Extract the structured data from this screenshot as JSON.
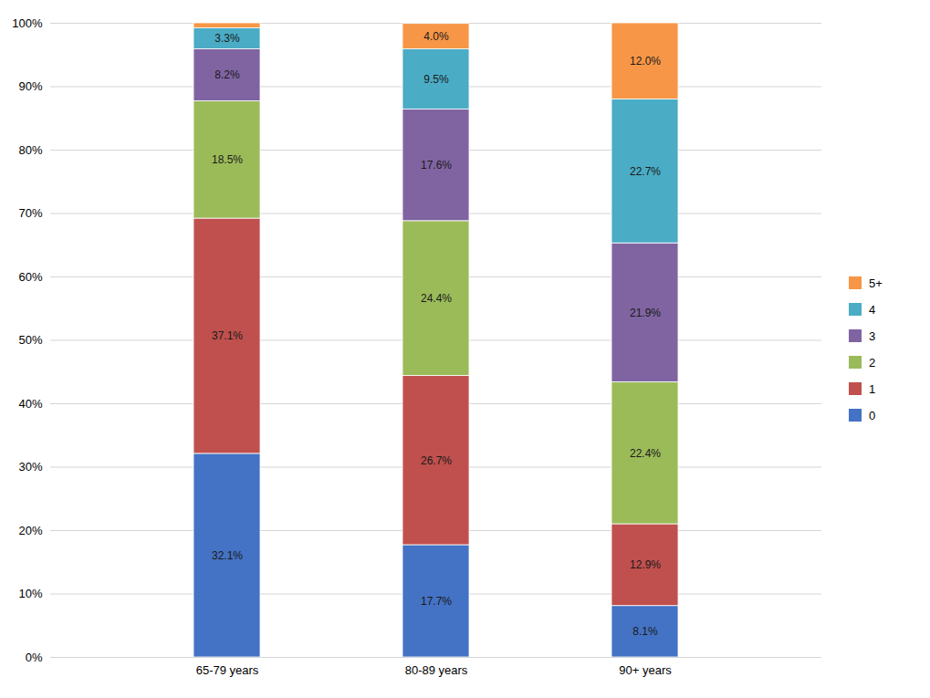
{
  "chart_data": {
    "type": "bar",
    "stacked": true,
    "categories": [
      "65-79 years",
      "80-89 years",
      "90+ years"
    ],
    "series": [
      {
        "name": "0",
        "color": "#4472C4",
        "values": [
          32.1,
          17.7,
          8.1
        ],
        "value_labels": [
          "32.1%",
          "17.7%",
          "8.1%"
        ]
      },
      {
        "name": "1",
        "color": "#C0504D",
        "values": [
          37.1,
          26.7,
          12.9
        ],
        "value_labels": [
          "37.1%",
          "26.7%",
          "12.9%"
        ]
      },
      {
        "name": "2",
        "color": "#9BBB59",
        "values": [
          18.5,
          24.4,
          22.4
        ],
        "value_labels": [
          "18.5%",
          "24.4%",
          "22.4%"
        ]
      },
      {
        "name": "3",
        "color": "#8064A2",
        "values": [
          8.2,
          17.6,
          21.9
        ],
        "value_labels": [
          "8.2%",
          "17.6%",
          "21.9%"
        ]
      },
      {
        "name": "4",
        "color": "#4BACC6",
        "values": [
          3.3,
          9.5,
          22.7
        ],
        "value_labels": [
          "3.3%",
          "9.5%",
          "22.7%"
        ]
      },
      {
        "name": "5+",
        "color": "#F79646",
        "values": [
          0.8,
          4.0,
          12.0
        ],
        "value_labels": [
          null,
          "4.0%",
          "12.0%"
        ]
      }
    ],
    "ylim": [
      0,
      100
    ],
    "yticks": [
      {
        "value": 0,
        "label": "0%"
      },
      {
        "value": 10,
        "label": "10%"
      },
      {
        "value": 20,
        "label": "20%"
      },
      {
        "value": 30,
        "label": "30%"
      },
      {
        "value": 40,
        "label": "40%"
      },
      {
        "value": 50,
        "label": "50%"
      },
      {
        "value": 60,
        "label": "60%"
      },
      {
        "value": 70,
        "label": "70%"
      },
      {
        "value": 80,
        "label": "80%"
      },
      {
        "value": 90,
        "label": "90%"
      },
      {
        "value": 100,
        "label": "100%"
      }
    ],
    "grid": true,
    "legend": "right",
    "data_labels": true
  }
}
